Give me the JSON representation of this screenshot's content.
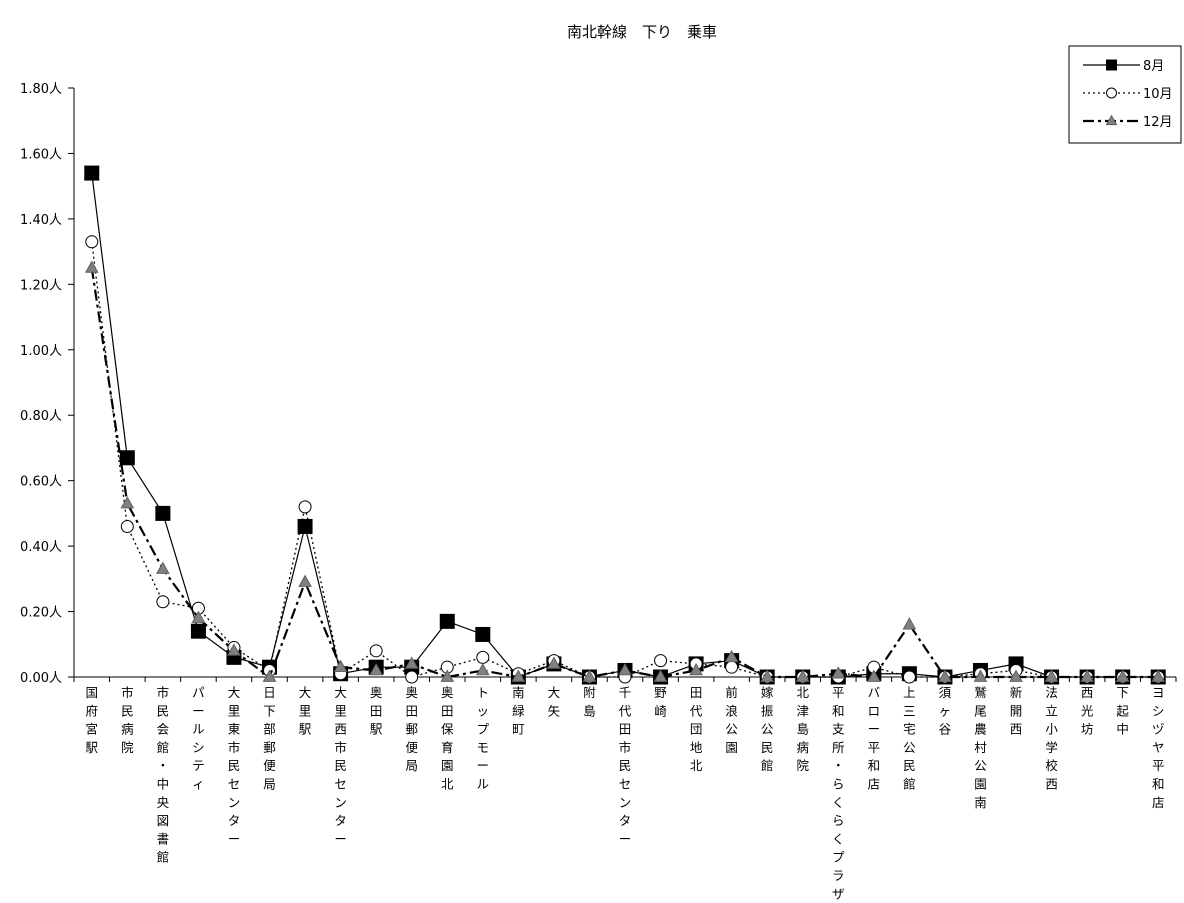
{
  "chart_data": {
    "type": "line",
    "title": "南北幹線　下り　乗車",
    "xlabel": "",
    "ylabel": "",
    "ylim": [
      0,
      1.8
    ],
    "y_ticks": [
      "0.00人",
      "0.20人",
      "0.40人",
      "0.60人",
      "0.80人",
      "1.00人",
      "1.20人",
      "1.40人",
      "1.60人",
      "1.80人"
    ],
    "grid": false,
    "legend_position": "top-right",
    "categories": [
      "国府宮駅",
      "市民病院",
      "市民会館・中央図書館",
      "パールシティ",
      "大里東市民センター",
      "日下部郵便局",
      "大里駅",
      "大里西市民センター",
      "奥田駅",
      "奥田郵便局",
      "奥田保育園北",
      "トップモール",
      "南緑町",
      "大矢",
      "附島",
      "千代田市民センター",
      "野崎",
      "田代団地北",
      "前浪公園",
      "嫁振公民館",
      "北津島病院",
      "平和支所・らくらくプラザ",
      "バロー平和店",
      "上三宅公民館",
      "須ヶ谷",
      "鷲尾農村公園南",
      "新開西",
      "法立小学校西",
      "西光坊",
      "下起中",
      "ヨシヅヤ平和店"
    ],
    "series": [
      {
        "name": "8月",
        "color": "#000000",
        "marker": "square",
        "line_style": "solid",
        "values": [
          1.54,
          0.67,
          0.5,
          0.14,
          0.06,
          0.03,
          0.46,
          0.01,
          0.03,
          0.03,
          0.17,
          0.13,
          0.0,
          0.04,
          0.0,
          0.02,
          0.0,
          0.04,
          0.05,
          0.0,
          0.0,
          0.0,
          0.01,
          0.01,
          0.0,
          0.02,
          0.04,
          0.0,
          0.0,
          0.0,
          0.0
        ]
      },
      {
        "name": "10月",
        "color": "#000000",
        "marker": "circle",
        "line_style": "dotted",
        "values": [
          1.33,
          0.46,
          0.23,
          0.21,
          0.09,
          0.02,
          0.52,
          0.01,
          0.08,
          0.0,
          0.03,
          0.06,
          0.01,
          0.05,
          0.0,
          0.0,
          0.05,
          0.04,
          0.03,
          0.0,
          0.0,
          0.0,
          0.03,
          0.0,
          0.0,
          0.01,
          0.02,
          0.0,
          0.0,
          0.0,
          0.0
        ]
      },
      {
        "name": "12月",
        "color": "#808080",
        "marker": "triangle",
        "line_style": "dash-dot",
        "values": [
          1.25,
          0.53,
          0.33,
          0.18,
          0.08,
          0.0,
          0.29,
          0.03,
          0.02,
          0.04,
          0.0,
          0.02,
          0.0,
          0.04,
          0.0,
          0.02,
          0.0,
          0.02,
          0.06,
          0.0,
          0.0,
          0.01,
          0.0,
          0.16,
          0.0,
          0.0,
          0.0,
          0.0,
          0.0,
          0.0,
          0.0
        ]
      }
    ]
  }
}
